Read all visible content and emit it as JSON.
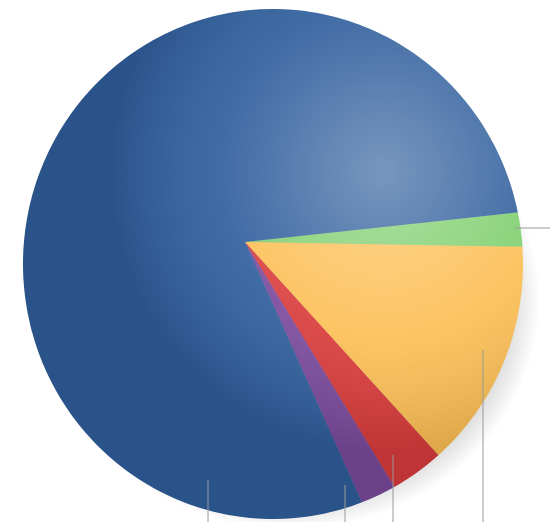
{
  "chart_data": {
    "type": "pie",
    "series": [
      {
        "color": "#7fcf6e",
        "values": [
          2
        ]
      },
      {
        "color": "#fcbf55",
        "values": [
          13
        ]
      },
      {
        "color": "#d93b3b",
        "values": [
          3
        ]
      },
      {
        "color": "#7a4a9c",
        "values": [
          2
        ]
      },
      {
        "color": "#2f5e9c",
        "values": [
          80
        ]
      }
    ]
  }
}
